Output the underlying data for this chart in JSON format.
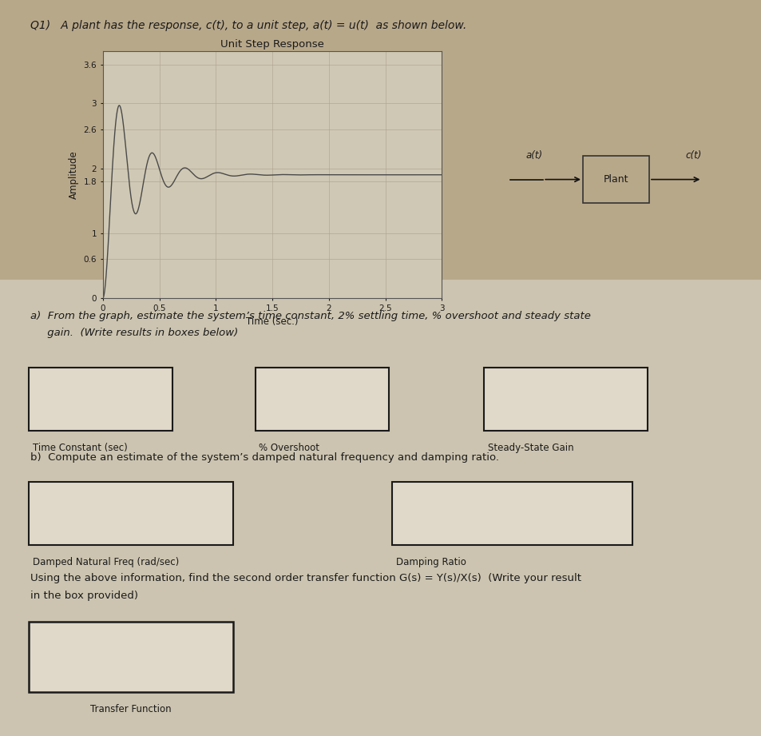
{
  "bg_color_top": "#b8a88a",
  "bg_color_bottom": "#c8bda8",
  "paper_color": "#d8d0c0",
  "title_text": "Q1)   A plant has the response, c(t), to a unit step, a(t) = u(t)  as shown below.",
  "plot_title": "Unit Step Response",
  "xlabel": "Time (sec.)",
  "ylabel": "Amplitude",
  "yticks": [
    0,
    0.6,
    1,
    1.8,
    2,
    2.6,
    3,
    3.6
  ],
  "xticks": [
    0,
    0.5,
    1,
    1.5,
    2,
    2.5,
    3
  ],
  "xlim": [
    0,
    3
  ],
  "ylim": [
    0,
    3.8
  ],
  "section_a_line1": "a)  From the graph, estimate the system’s time constant, 2% settling time, % overshoot and steady state",
  "section_a_line2": "     gain.  (Write results in boxes below)",
  "section_b_text": "b)  Compute an estimate of the system’s damped natural frequency and damping ratio.",
  "section_c_line1": "Using the above information, find the second order transfer function G(s) = Y(s)/X(s)  (Write your result",
  "section_c_line2": "in the box provided)",
  "box_label_1": "Time Constant (sec)",
  "box_label_2": "% Overshoot",
  "box_label_3": "Steady-State Gain",
  "box_label_4": "Damped Natural Freq (rad/sec)",
  "box_label_5": "Damping Ratio",
  "box_label_6": "Transfer Function",
  "gs_label": "G(s) =",
  "plant_label": "Plant",
  "at_label": "a(t)",
  "ct_label": "c(t)",
  "line_color": "#4a4a4a",
  "box_facecolor": "#e0d8c8",
  "box_edgecolor": "#1a1a1a",
  "font_color": "#1a1a1a",
  "plot_bg": "#cfc8b4",
  "grid_color": "#aaa090"
}
